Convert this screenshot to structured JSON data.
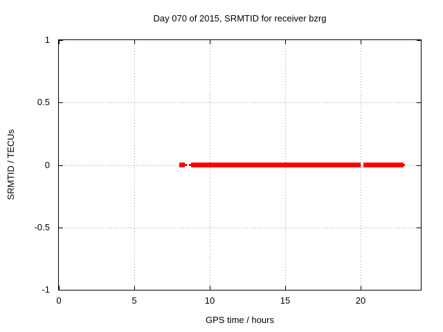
{
  "chart_data": {
    "type": "scatter",
    "title": "Day 070 of 2015, SRMTID for receiver bzrg",
    "xlabel": "GPS time / hours",
    "ylabel": "SRMTID / TECUs",
    "xlim": [
      0,
      24
    ],
    "ylim": [
      -1,
      1
    ],
    "grid": true,
    "legend": "none",
    "xticks": [
      {
        "v": 0,
        "label": "0"
      },
      {
        "v": 5,
        "label": "5"
      },
      {
        "v": 10,
        "label": "10"
      },
      {
        "v": 15,
        "label": "15"
      },
      {
        "v": 20,
        "label": "20"
      }
    ],
    "yticks": [
      {
        "v": -1,
        "label": "-1"
      },
      {
        "v": -0.5,
        "label": "-0.5"
      },
      {
        "v": 0,
        "label": "0"
      },
      {
        "v": 0.5,
        "label": "0.5"
      },
      {
        "v": 1,
        "label": "1"
      }
    ],
    "series": [
      {
        "name": "SRMTID",
        "marker": "filled-square",
        "color": "#ff0000",
        "y": 0,
        "segments": [
          {
            "x1": 8.0,
            "x2": 8.37,
            "marker_px": 7
          },
          {
            "x1": 8.34,
            "x2": 8.46,
            "marker_px": 3
          },
          {
            "x1": 8.64,
            "x2": 8.78,
            "marker_px": 3
          },
          {
            "x1": 8.78,
            "x2": 20.0,
            "marker_px": 7
          },
          {
            "x1": 20.21,
            "x2": 22.86,
            "marker_px": 7
          },
          {
            "x1": 22.86,
            "x2": 22.95,
            "marker_px": 3
          }
        ]
      }
    ],
    "colors": {
      "background": "#ffffff",
      "axis": "#000000",
      "grid": "#9a9a9a",
      "series": "#ff0000",
      "text": "#000000"
    }
  }
}
